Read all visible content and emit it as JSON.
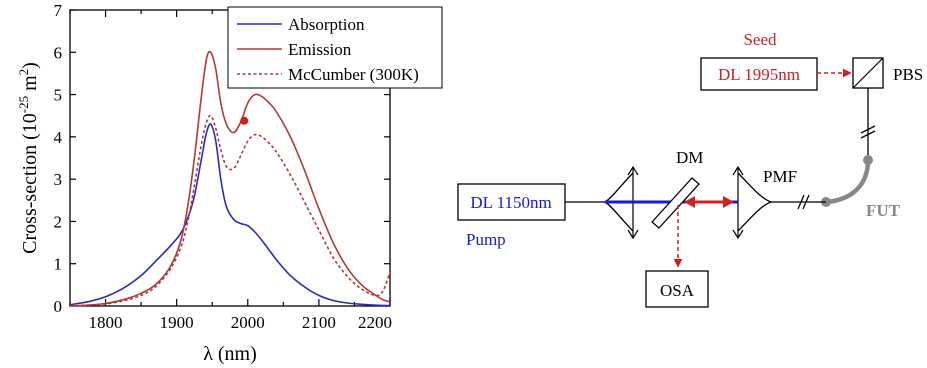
{
  "chart_data": {
    "type": "line",
    "xlabel": "λ (nm)",
    "ylabel_main": "Cross-section (10",
    "ylabel_exp": "-25",
    "ylabel_unit": " m",
    "ylabel_unit_exp": "2",
    "ylabel_close": ")",
    "xlim": [
      1750,
      2200
    ],
    "ylim": [
      0,
      7
    ],
    "xticks": [
      "1800",
      "1900",
      "2000",
      "2100",
      "2200"
    ],
    "yticks": [
      "0",
      "1",
      "2",
      "3",
      "4",
      "5",
      "6",
      "7"
    ],
    "legend_position": "top-right",
    "grid": false,
    "series": [
      {
        "name": "Absorption",
        "color": "#2b2bb8",
        "style": "solid",
        "x": [
          1750,
          1775,
          1800,
          1825,
          1850,
          1870,
          1890,
          1905,
          1915,
          1925,
          1935,
          1942,
          1948,
          1955,
          1962,
          1970,
          1980,
          1990,
          2000,
          2010,
          2020,
          2040,
          2060,
          2080,
          2100,
          2120,
          2140,
          2160,
          2180,
          2200
        ],
        "y": [
          0.03,
          0.1,
          0.22,
          0.42,
          0.72,
          1.05,
          1.4,
          1.7,
          2.05,
          2.6,
          3.5,
          4.1,
          4.3,
          3.9,
          3.0,
          2.35,
          2.05,
          1.95,
          1.9,
          1.75,
          1.55,
          1.1,
          0.72,
          0.45,
          0.25,
          0.13,
          0.07,
          0.04,
          0.02,
          0.01
        ]
      },
      {
        "name": "Emission",
        "color": "#b03a3a",
        "style": "solid",
        "x": [
          1750,
          1775,
          1800,
          1825,
          1850,
          1870,
          1890,
          1905,
          1915,
          1925,
          1935,
          1942,
          1948,
          1955,
          1962,
          1970,
          1980,
          1990,
          2000,
          2010,
          2020,
          2030,
          2040,
          2060,
          2080,
          2100,
          2120,
          2140,
          2160,
          2180,
          2190,
          2200
        ],
        "y": [
          0.0,
          0.02,
          0.06,
          0.15,
          0.3,
          0.5,
          0.9,
          1.5,
          2.3,
          3.5,
          5.0,
          5.85,
          6.0,
          5.6,
          4.8,
          4.3,
          4.1,
          4.35,
          4.8,
          5.0,
          4.95,
          4.8,
          4.6,
          4.0,
          3.2,
          2.3,
          1.5,
          0.9,
          0.5,
          0.25,
          0.15,
          0.1
        ]
      },
      {
        "name": "McCumber (300K)",
        "color": "#b03a3a",
        "style": "dotted",
        "x": [
          1750,
          1775,
          1800,
          1825,
          1850,
          1870,
          1890,
          1905,
          1915,
          1925,
          1935,
          1942,
          1948,
          1955,
          1962,
          1970,
          1980,
          1990,
          2000,
          2010,
          2020,
          2030,
          2040,
          2060,
          2080,
          2100,
          2120,
          2140,
          2160,
          2180,
          2190,
          2200
        ],
        "y": [
          0.0,
          0.02,
          0.05,
          0.12,
          0.25,
          0.45,
          0.85,
          1.35,
          1.95,
          2.85,
          3.85,
          4.35,
          4.5,
          4.2,
          3.7,
          3.3,
          3.25,
          3.55,
          3.9,
          4.05,
          4.0,
          3.85,
          3.65,
          3.1,
          2.45,
          1.8,
          1.15,
          0.7,
          0.4,
          0.25,
          0.35,
          0.8
        ]
      }
    ],
    "marker": {
      "x": 1995,
      "y": 4.38,
      "color": "#cc1f1f"
    }
  },
  "diagram": {
    "seed_label": "Seed",
    "seed_laser": "DL 1995nm",
    "pbs": "PBS",
    "dm": "DM",
    "pmf": "PMF",
    "fut": "FUT",
    "pump_laser": "DL 1150nm",
    "pump_label": "Pump",
    "osa": "OSA",
    "colors": {
      "seed": "#cc2222",
      "pump": "#1a1ad0",
      "fiber": "#888888",
      "black": "#000000"
    }
  }
}
